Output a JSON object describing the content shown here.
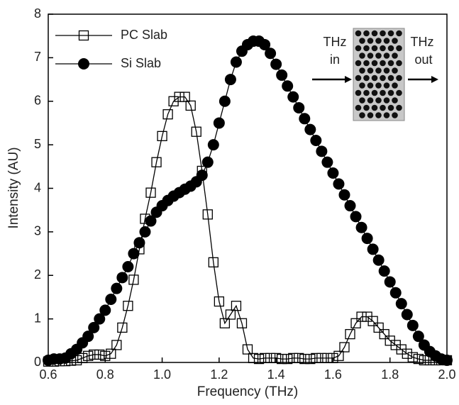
{
  "chart_data": {
    "type": "line",
    "xlabel": "Frequency (THz)",
    "ylabel": "Intensity (AU)",
    "xlim": [
      0.6,
      2.0
    ],
    "ylim": [
      0,
      8
    ],
    "xticks": [
      0.6,
      0.8,
      {
        "value": 1,
        "label": "1.0"
      },
      1.2,
      1.4,
      1.6,
      1.8,
      {
        "value": 2,
        "label": "2.0"
      }
    ],
    "yticks": [
      0,
      1,
      2,
      3,
      4,
      5,
      6,
      7,
      8
    ],
    "legend": "upper left",
    "x": [
      0.6,
      0.62,
      0.64,
      0.66,
      0.68,
      0.7,
      0.72,
      0.74,
      0.76,
      0.78,
      0.8,
      0.82,
      0.84,
      0.86,
      0.88,
      0.9,
      0.92,
      0.94,
      0.96,
      0.98,
      1.0,
      1.02,
      1.04,
      1.06,
      1.08,
      1.1,
      1.12,
      1.14,
      1.16,
      1.18,
      1.2,
      1.22,
      1.24,
      1.26,
      1.28,
      1.3,
      1.32,
      1.34,
      1.36,
      1.38,
      1.4,
      1.42,
      1.44,
      1.46,
      1.48,
      1.5,
      1.52,
      1.54,
      1.56,
      1.58,
      1.6,
      1.62,
      1.64,
      1.66,
      1.68,
      1.7,
      1.72,
      1.74,
      1.76,
      1.78,
      1.8,
      1.82,
      1.84,
      1.86,
      1.88,
      1.9,
      1.92,
      1.94,
      1.96,
      1.98,
      2.0
    ],
    "series": [
      {
        "name": "Si Slab",
        "color": "#000000",
        "marker": "circle",
        "values": [
          0.05,
          0.08,
          0.08,
          0.1,
          0.2,
          0.3,
          0.45,
          0.6,
          0.8,
          1.0,
          1.2,
          1.45,
          1.7,
          1.95,
          2.2,
          2.5,
          2.75,
          3.0,
          3.25,
          3.45,
          3.6,
          3.72,
          3.82,
          3.9,
          3.98,
          4.05,
          4.15,
          4.3,
          4.6,
          5.0,
          5.5,
          6.0,
          6.5,
          6.9,
          7.15,
          7.3,
          7.38,
          7.38,
          7.3,
          7.1,
          6.85,
          6.6,
          6.35,
          6.1,
          5.85,
          5.6,
          5.35,
          5.1,
          4.85,
          4.6,
          4.35,
          4.1,
          3.85,
          3.6,
          3.35,
          3.1,
          2.85,
          2.6,
          2.35,
          2.1,
          1.85,
          1.6,
          1.35,
          1.1,
          0.85,
          0.6,
          0.4,
          0.25,
          0.15,
          0.08,
          0.05
        ]
      },
      {
        "name": "PC Slab",
        "color": "#000000",
        "marker": "square",
        "values": [
          0.02,
          0.02,
          0.03,
          0.03,
          0.04,
          0.05,
          0.1,
          0.15,
          0.18,
          0.18,
          0.15,
          0.2,
          0.4,
          0.8,
          1.3,
          1.9,
          2.6,
          3.3,
          3.9,
          4.6,
          5.2,
          5.7,
          6.0,
          6.1,
          6.1,
          5.9,
          5.3,
          4.4,
          3.4,
          2.3,
          1.4,
          0.9,
          1.1,
          1.3,
          0.9,
          0.3,
          0.1,
          0.08,
          0.1,
          0.1,
          0.1,
          0.08,
          0.08,
          0.1,
          0.1,
          0.08,
          0.08,
          0.1,
          0.1,
          0.1,
          0.1,
          0.15,
          0.35,
          0.65,
          0.9,
          1.05,
          1.05,
          0.95,
          0.8,
          0.65,
          0.5,
          0.4,
          0.3,
          0.2,
          0.12,
          0.08,
          0.05,
          0.05,
          0.05,
          0.05,
          0.05
        ]
      }
    ],
    "inset": {
      "left_label": [
        "THz",
        "in"
      ],
      "right_label": [
        "THz",
        "out"
      ]
    }
  }
}
